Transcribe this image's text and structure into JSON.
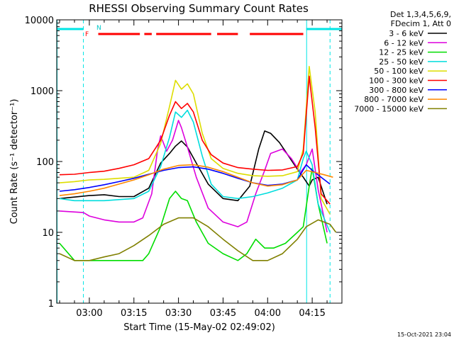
{
  "chart_data": {
    "type": "line",
    "title": "RHESSI Observing Summary Count Rates",
    "xlabel": "Start Time (15-May-02 02:49:02)",
    "ylabel": "Count Rate (s⁻¹ detector⁻¹)",
    "y_scale": "log",
    "ylim": [
      1,
      10000
    ],
    "xlim": [
      "02:49:02",
      "04:25:00"
    ],
    "x_ticks": [
      "03:00",
      "03:15",
      "03:30",
      "03:45",
      "04:00",
      "04:15"
    ],
    "y_ticks": [
      "1",
      "10",
      "100",
      "1000",
      "10000"
    ],
    "header_lines": [
      "Det 1,3,4,5,6,9,",
      "FDecim 1, Att 0"
    ],
    "timestamp": "15-Oct-2021 23:04",
    "flags": {
      "N_label": "N",
      "F_label": "F",
      "night_color": "#00e5e5",
      "flare_color": "#ff0000",
      "night_segments": [
        [
          "02:49:02",
          "02:58:00"
        ],
        [
          "04:13:00",
          "04:25:00"
        ]
      ],
      "flare_segments": [
        [
          "03:03:00",
          "03:17:00"
        ],
        [
          "03:18:30",
          "03:21:00"
        ],
        [
          "03:22:30",
          "03:41:00"
        ],
        [
          "03:43:00",
          "03:50:00"
        ],
        [
          "03:54:00",
          "04:12:00"
        ]
      ],
      "night_boundaries": [
        "02:49:02",
        "04:13:00"
      ],
      "day_boundaries": [
        "02:58:00",
        "04:21:00"
      ]
    },
    "series": [
      {
        "name": "3 - 6 keV",
        "color": "#000000",
        "points": [
          [
            "02:50",
            30
          ],
          [
            "03:00",
            33
          ],
          [
            "03:05",
            34
          ],
          [
            "03:10",
            32
          ],
          [
            "03:15",
            32
          ],
          [
            "03:20",
            42
          ],
          [
            "03:24",
            95
          ],
          [
            "03:27",
            130
          ],
          [
            "03:29",
            165
          ],
          [
            "03:31",
            195
          ],
          [
            "03:33",
            160
          ],
          [
            "03:36",
            95
          ],
          [
            "03:40",
            48
          ],
          [
            "03:45",
            30
          ],
          [
            "03:50",
            28
          ],
          [
            "03:54",
            45
          ],
          [
            "03:57",
            150
          ],
          [
            "03:59",
            270
          ],
          [
            "04:01",
            250
          ],
          [
            "04:04",
            185
          ],
          [
            "04:07",
            120
          ],
          [
            "04:10",
            78
          ],
          [
            "04:12",
            60
          ],
          [
            "04:14",
            45
          ],
          [
            "04:15",
            55
          ],
          [
            "04:17",
            60
          ],
          [
            "04:20",
            25
          ]
        ]
      },
      {
        "name": "6 - 12 keV",
        "color": "#dd00dd",
        "points": [
          [
            "02:50",
            20
          ],
          [
            "02:58",
            19
          ],
          [
            "03:00",
            17
          ],
          [
            "03:05",
            15
          ],
          [
            "03:10",
            14
          ],
          [
            "03:15",
            14
          ],
          [
            "03:18",
            16
          ],
          [
            "03:21",
            35
          ],
          [
            "03:23",
            150
          ],
          [
            "03:24",
            230
          ],
          [
            "03:26",
            140
          ],
          [
            "03:28",
            200
          ],
          [
            "03:30",
            380
          ],
          [
            "03:31",
            300
          ],
          [
            "03:33",
            160
          ],
          [
            "03:36",
            60
          ],
          [
            "03:40",
            22
          ],
          [
            "03:45",
            14
          ],
          [
            "03:50",
            12
          ],
          [
            "03:53",
            14
          ],
          [
            "03:56",
            35
          ],
          [
            "03:59",
            75
          ],
          [
            "04:01",
            130
          ],
          [
            "04:05",
            150
          ],
          [
            "04:08",
            110
          ],
          [
            "04:11",
            70
          ],
          [
            "04:13",
            90
          ],
          [
            "04:15",
            150
          ],
          [
            "04:17",
            40
          ],
          [
            "04:20",
            10
          ]
        ]
      },
      {
        "name": "12 - 25 keV",
        "color": "#00dd00",
        "points": [
          [
            "02:50",
            7
          ],
          [
            "02:55",
            4
          ],
          [
            "03:00",
            4
          ],
          [
            "03:05",
            4
          ],
          [
            "03:10",
            4
          ],
          [
            "03:15",
            4
          ],
          [
            "03:18",
            4
          ],
          [
            "03:20",
            5
          ],
          [
            "03:24",
            12
          ],
          [
            "03:27",
            30
          ],
          [
            "03:29",
            38
          ],
          [
            "03:31",
            30
          ],
          [
            "03:33",
            28
          ],
          [
            "03:36",
            14
          ],
          [
            "03:40",
            7
          ],
          [
            "03:45",
            5
          ],
          [
            "03:50",
            4
          ],
          [
            "03:53",
            5
          ],
          [
            "03:56",
            8
          ],
          [
            "03:59",
            6
          ],
          [
            "04:02",
            6
          ],
          [
            "04:06",
            7
          ],
          [
            "04:10",
            10
          ],
          [
            "04:12",
            12
          ],
          [
            "04:14",
            45
          ],
          [
            "04:15",
            80
          ],
          [
            "04:17",
            25
          ],
          [
            "04:20",
            7
          ]
        ]
      },
      {
        "name": "25 - 50 keV",
        "color": "#00dddd",
        "points": [
          [
            "02:50",
            30
          ],
          [
            "02:55",
            28
          ],
          [
            "03:00",
            28
          ],
          [
            "03:05",
            28
          ],
          [
            "03:10",
            29
          ],
          [
            "03:15",
            30
          ],
          [
            "03:20",
            38
          ],
          [
            "03:24",
            85
          ],
          [
            "03:27",
            220
          ],
          [
            "03:29",
            500
          ],
          [
            "03:31",
            420
          ],
          [
            "03:33",
            530
          ],
          [
            "03:35",
            360
          ],
          [
            "03:38",
            120
          ],
          [
            "03:41",
            48
          ],
          [
            "03:45",
            32
          ],
          [
            "03:50",
            30
          ],
          [
            "03:55",
            32
          ],
          [
            "04:00",
            36
          ],
          [
            "04:05",
            42
          ],
          [
            "04:10",
            55
          ],
          [
            "04:12",
            110
          ],
          [
            "04:13",
            140
          ],
          [
            "04:15",
            90
          ],
          [
            "04:17",
            25
          ],
          [
            "04:21",
            10
          ]
        ]
      },
      {
        "name": "50 - 100 keV",
        "color": "#dddd00",
        "points": [
          [
            "02:50",
            50
          ],
          [
            "02:55",
            52
          ],
          [
            "03:00",
            55
          ],
          [
            "03:05",
            56
          ],
          [
            "03:10",
            58
          ],
          [
            "03:15",
            60
          ],
          [
            "03:20",
            75
          ],
          [
            "03:24",
            180
          ],
          [
            "03:27",
            600
          ],
          [
            "03:29",
            1400
          ],
          [
            "03:31",
            1050
          ],
          [
            "03:33",
            1250
          ],
          [
            "03:35",
            900
          ],
          [
            "03:38",
            250
          ],
          [
            "03:41",
            110
          ],
          [
            "03:45",
            80
          ],
          [
            "03:50",
            68
          ],
          [
            "03:55",
            63
          ],
          [
            "04:00",
            62
          ],
          [
            "04:05",
            63
          ],
          [
            "04:10",
            72
          ],
          [
            "04:12",
            150
          ],
          [
            "04:14",
            2200
          ],
          [
            "04:16",
            500
          ],
          [
            "04:18",
            30
          ],
          [
            "04:21",
            18
          ]
        ]
      },
      {
        "name": "100 - 300 keV",
        "color": "#ff0000",
        "points": [
          [
            "02:50",
            65
          ],
          [
            "02:55",
            66
          ],
          [
            "03:00",
            70
          ],
          [
            "03:05",
            73
          ],
          [
            "03:10",
            80
          ],
          [
            "03:15",
            90
          ],
          [
            "03:20",
            110
          ],
          [
            "03:24",
            200
          ],
          [
            "03:27",
            450
          ],
          [
            "03:29",
            700
          ],
          [
            "03:31",
            560
          ],
          [
            "03:33",
            660
          ],
          [
            "03:35",
            500
          ],
          [
            "03:38",
            200
          ],
          [
            "03:41",
            125
          ],
          [
            "03:45",
            95
          ],
          [
            "03:50",
            82
          ],
          [
            "03:55",
            78
          ],
          [
            "04:00",
            75
          ],
          [
            "04:05",
            76
          ],
          [
            "04:10",
            85
          ],
          [
            "04:12",
            130
          ],
          [
            "04:14",
            1600
          ],
          [
            "04:16",
            300
          ],
          [
            "04:18",
            35
          ],
          [
            "04:21",
            25
          ]
        ]
      },
      {
        "name": "300 - 800 keV",
        "color": "#0000ff",
        "points": [
          [
            "02:50",
            38
          ],
          [
            "02:55",
            40
          ],
          [
            "03:00",
            43
          ],
          [
            "03:05",
            47
          ],
          [
            "03:10",
            52
          ],
          [
            "03:15",
            58
          ],
          [
            "03:20",
            66
          ],
          [
            "03:25",
            75
          ],
          [
            "03:30",
            82
          ],
          [
            "03:35",
            84
          ],
          [
            "03:40",
            78
          ],
          [
            "03:45",
            68
          ],
          [
            "03:50",
            58
          ],
          [
            "03:55",
            50
          ],
          [
            "04:00",
            46
          ],
          [
            "04:05",
            48
          ],
          [
            "04:10",
            55
          ],
          [
            "04:13",
            90
          ],
          [
            "04:15",
            75
          ],
          [
            "04:18",
            60
          ],
          [
            "04:21",
            48
          ]
        ]
      },
      {
        "name": "800 - 7000 keV",
        "color": "#ff8800",
        "points": [
          [
            "02:50",
            33
          ],
          [
            "02:55",
            35
          ],
          [
            "03:00",
            38
          ],
          [
            "03:05",
            42
          ],
          [
            "03:10",
            48
          ],
          [
            "03:15",
            55
          ],
          [
            "03:20",
            65
          ],
          [
            "03:25",
            78
          ],
          [
            "03:30",
            88
          ],
          [
            "03:35",
            90
          ],
          [
            "03:40",
            83
          ],
          [
            "03:45",
            72
          ],
          [
            "03:50",
            60
          ],
          [
            "03:55",
            50
          ],
          [
            "04:00",
            45
          ],
          [
            "04:05",
            47
          ],
          [
            "04:10",
            55
          ],
          [
            "04:13",
            75
          ],
          [
            "04:16",
            70
          ],
          [
            "04:19",
            65
          ],
          [
            "04:22",
            60
          ]
        ]
      },
      {
        "name": "7000 - 15000 keV",
        "color": "#808000",
        "points": [
          [
            "02:50",
            5
          ],
          [
            "02:55",
            4
          ],
          [
            "03:00",
            4
          ],
          [
            "03:05",
            4.5
          ],
          [
            "03:10",
            5
          ],
          [
            "03:15",
            6.5
          ],
          [
            "03:20",
            9
          ],
          [
            "03:25",
            13
          ],
          [
            "03:30",
            16
          ],
          [
            "03:35",
            16
          ],
          [
            "03:40",
            12
          ],
          [
            "03:45",
            8
          ],
          [
            "03:50",
            5.5
          ],
          [
            "03:55",
            4
          ],
          [
            "04:00",
            4
          ],
          [
            "04:05",
            5
          ],
          [
            "04:10",
            8
          ],
          [
            "04:13",
            12
          ],
          [
            "04:17",
            15
          ],
          [
            "04:21",
            13
          ],
          [
            "04:23",
            10
          ]
        ]
      }
    ]
  }
}
